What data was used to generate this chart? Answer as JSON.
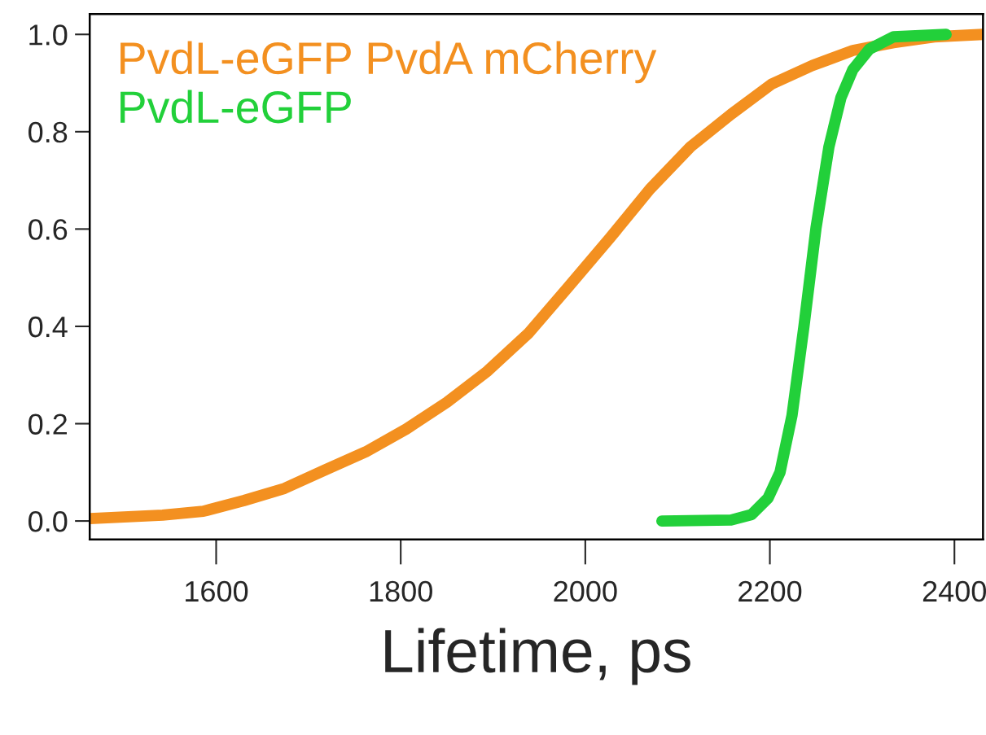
{
  "chart_data": {
    "type": "line",
    "xlabel": "Lifetime, ps",
    "xlim": [
      1463,
      2431
    ],
    "ylim": [
      -0.038,
      1.042
    ],
    "xticks": [
      1600,
      1800,
      2000,
      2200,
      2400
    ],
    "yticks": [
      {
        "value": 0,
        "label": "0.0"
      },
      0.2,
      0.4,
      0.6,
      0.8,
      {
        "value": 1,
        "label": "1.0"
      }
    ],
    "legend": "top left",
    "grid": false,
    "series": [
      {
        "name": "PvdL-eGFP PvdA mCherry",
        "color": "#f39020",
        "x": [
          1463,
          1542,
          1586,
          1630,
          1674,
          1718,
          1762,
          1806,
          1850,
          1894,
          1938,
          1982,
          2026,
          2070,
          2114,
          2158,
          2202,
          2246,
          2290,
          2334,
          2378,
          2431
        ],
        "values": [
          0.005,
          0.012,
          0.02,
          0.042,
          0.067,
          0.105,
          0.142,
          0.189,
          0.244,
          0.308,
          0.385,
          0.482,
          0.58,
          0.682,
          0.769,
          0.836,
          0.898,
          0.936,
          0.967,
          0.983,
          0.995,
          1.0
        ]
      },
      {
        "name": "PvdL-eGFP",
        "color": "#22d03a",
        "x": [
          2083,
          2158,
          2180,
          2198,
          2211,
          2224,
          2237,
          2250,
          2264,
          2277,
          2290,
          2308,
          2334,
          2391
        ],
        "values": [
          0,
          0.002,
          0.013,
          0.047,
          0.1,
          0.217,
          0.401,
          0.602,
          0.769,
          0.87,
          0.928,
          0.97,
          0.995,
          1.0
        ]
      }
    ]
  }
}
